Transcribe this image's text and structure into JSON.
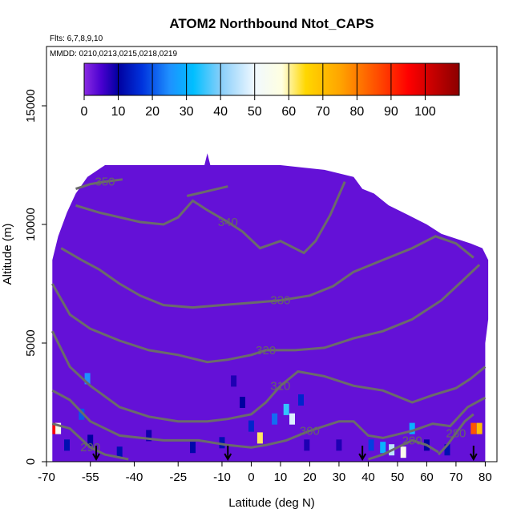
{
  "chart_data": {
    "type": "heatmap",
    "title": "ATOM2 Northbound Ntot_CAPS",
    "subtitle_flights": "Flts: 6,7,8,9,10",
    "subtitle_dates": "MMDD: 0210,0213,0215,0218,0219",
    "xlabel": "Latitude (deg N)",
    "ylabel": "Altitude (m)",
    "xlim": [
      -70,
      84
    ],
    "ylim": [
      0,
      17500
    ],
    "x_ticks": [
      -70,
      -55,
      -40,
      -25,
      -10,
      0,
      10,
      20,
      30,
      40,
      50,
      60,
      70,
      80
    ],
    "y_ticks": [
      0,
      5000,
      10000,
      15000
    ],
    "colorbar": {
      "range": [
        0,
        110
      ],
      "ticks": [
        0,
        10,
        20,
        30,
        40,
        50,
        60,
        70,
        80,
        90,
        100
      ],
      "stops": [
        {
          "v": 0,
          "color": "#8a2be2"
        },
        {
          "v": 5,
          "color": "#4a00d0"
        },
        {
          "v": 10,
          "color": "#0000a0"
        },
        {
          "v": 17,
          "color": "#0033dd"
        },
        {
          "v": 25,
          "color": "#1e90ff"
        },
        {
          "v": 32,
          "color": "#00bfff"
        },
        {
          "v": 40,
          "color": "#87cefa"
        },
        {
          "v": 50,
          "color": "#f0f8ff"
        },
        {
          "v": 58,
          "color": "#ffffe0"
        },
        {
          "v": 65,
          "color": "#ffd700"
        },
        {
          "v": 75,
          "color": "#ffa500"
        },
        {
          "v": 87,
          "color": "#ff4500"
        },
        {
          "v": 95,
          "color": "#ff0000"
        },
        {
          "v": 110,
          "color": "#8b0000"
        }
      ]
    },
    "background_value": 3,
    "domain_outline": [
      [
        -68,
        0
      ],
      [
        -68,
        8500
      ],
      [
        -66,
        9500
      ],
      [
        -63,
        10500
      ],
      [
        -60,
        11300
      ],
      [
        -56,
        12000
      ],
      [
        -50,
        12500
      ],
      [
        -40,
        12500
      ],
      [
        -25,
        12500
      ],
      [
        -16,
        12500
      ],
      [
        -15,
        13000
      ],
      [
        -14,
        12500
      ],
      [
        -5,
        12500
      ],
      [
        10,
        12500
      ],
      [
        25,
        12300
      ],
      [
        35,
        12000
      ],
      [
        38,
        11500
      ],
      [
        42,
        11300
      ],
      [
        47,
        10800
      ],
      [
        52,
        10500
      ],
      [
        60,
        10000
      ],
      [
        65,
        9600
      ],
      [
        70,
        9400
      ],
      [
        75,
        9200
      ],
      [
        79,
        9000
      ],
      [
        81,
        8500
      ],
      [
        81,
        6000
      ],
      [
        80,
        5000
      ],
      [
        80,
        0
      ]
    ],
    "enhanced_cells": [
      {
        "x": -67,
        "y": 1400,
        "v": 95
      },
      {
        "x": -66,
        "y": 1400,
        "v": 55
      },
      {
        "x": -56,
        "y": 3500,
        "v": 25
      },
      {
        "x": -58,
        "y": 2000,
        "v": 20
      },
      {
        "x": -63,
        "y": 700,
        "v": 12
      },
      {
        "x": -55,
        "y": 900,
        "v": 10
      },
      {
        "x": -45,
        "y": 400,
        "v": 12
      },
      {
        "x": -35,
        "y": 1100,
        "v": 9
      },
      {
        "x": -20,
        "y": 600,
        "v": 11
      },
      {
        "x": -10,
        "y": 800,
        "v": 12
      },
      {
        "x": -6,
        "y": 3400,
        "v": 8
      },
      {
        "x": -3,
        "y": 2500,
        "v": 10
      },
      {
        "x": 0,
        "y": 1500,
        "v": 15
      },
      {
        "x": 3,
        "y": 1000,
        "v": 62
      },
      {
        "x": 8,
        "y": 1800,
        "v": 22
      },
      {
        "x": 12,
        "y": 2200,
        "v": 35
      },
      {
        "x": 14,
        "y": 1800,
        "v": 48
      },
      {
        "x": 17,
        "y": 2600,
        "v": 15
      },
      {
        "x": 19,
        "y": 700,
        "v": 8
      },
      {
        "x": 30,
        "y": 700,
        "v": 8
      },
      {
        "x": 41,
        "y": 700,
        "v": 18
      },
      {
        "x": 45,
        "y": 600,
        "v": 30
      },
      {
        "x": 48,
        "y": 500,
        "v": 45
      },
      {
        "x": 52,
        "y": 400,
        "v": 55
      },
      {
        "x": 55,
        "y": 1400,
        "v": 30
      },
      {
        "x": 60,
        "y": 700,
        "v": 10
      },
      {
        "x": 67,
        "y": 500,
        "v": 12
      },
      {
        "x": 76,
        "y": 1400,
        "v": 85
      },
      {
        "x": 78,
        "y": 1400,
        "v": 70
      }
    ],
    "contours": [
      {
        "label": "290",
        "points": [
          [
            -68,
            1600
          ],
          [
            -62,
            1400
          ],
          [
            -55,
            600
          ],
          [
            -50,
            300
          ],
          [
            -42,
            100
          ]
        ]
      },
      {
        "label": "290",
        "points": [
          [
            40,
            100
          ],
          [
            45,
            300
          ],
          [
            50,
            600
          ],
          [
            55,
            900
          ],
          [
            60,
            700
          ],
          [
            64,
            400
          ]
        ]
      },
      {
        "label": "300",
        "points": [
          [
            -68,
            3000
          ],
          [
            -62,
            2600
          ],
          [
            -55,
            1700
          ],
          [
            -45,
            1100
          ],
          [
            -30,
            900
          ],
          [
            -18,
            900
          ],
          [
            -8,
            700
          ],
          [
            0,
            600
          ],
          [
            5,
            700
          ],
          [
            12,
            900
          ],
          [
            20,
            1300
          ],
          [
            30,
            1700
          ],
          [
            35,
            1700
          ],
          [
            40,
            1100
          ],
          [
            45,
            1000
          ],
          [
            55,
            1300
          ],
          [
            62,
            1600
          ],
          [
            68,
            1500
          ],
          [
            74,
            2300
          ],
          [
            80,
            2700
          ]
        ]
      },
      {
        "label": "280",
        "points": [
          [
            64,
            300
          ],
          [
            67,
            700
          ],
          [
            70,
            1200
          ],
          [
            73,
            1700
          ],
          [
            76,
            2000
          ]
        ]
      },
      {
        "label": "310",
        "points": [
          [
            -68,
            5500
          ],
          [
            -62,
            4000
          ],
          [
            -55,
            3200
          ],
          [
            -45,
            2300
          ],
          [
            -35,
            1900
          ],
          [
            -25,
            1700
          ],
          [
            -15,
            1700
          ],
          [
            -8,
            1800
          ],
          [
            0,
            2000
          ],
          [
            5,
            2500
          ],
          [
            10,
            3200
          ],
          [
            16,
            3800
          ],
          [
            25,
            3600
          ],
          [
            35,
            3200
          ],
          [
            45,
            3000
          ],
          [
            55,
            2500
          ],
          [
            62,
            2800
          ],
          [
            70,
            3100
          ],
          [
            75,
            3500
          ],
          [
            80,
            4000
          ]
        ]
      },
      {
        "label": "320",
        "points": [
          [
            -68,
            7500
          ],
          [
            -62,
            6200
          ],
          [
            -55,
            5600
          ],
          [
            -45,
            5100
          ],
          [
            -35,
            4700
          ],
          [
            -25,
            4500
          ],
          [
            -15,
            4200
          ],
          [
            -8,
            4300
          ],
          [
            0,
            4500
          ],
          [
            5,
            4700
          ],
          [
            15,
            4700
          ],
          [
            25,
            4800
          ],
          [
            35,
            5200
          ],
          [
            45,
            5500
          ],
          [
            55,
            6000
          ],
          [
            65,
            6800
          ],
          [
            72,
            7600
          ],
          [
            78,
            8300
          ]
        ]
      },
      {
        "label": "330",
        "points": [
          [
            -65,
            9000
          ],
          [
            -58,
            8500
          ],
          [
            -52,
            8100
          ],
          [
            -45,
            7500
          ],
          [
            -38,
            7000
          ],
          [
            -30,
            6600
          ],
          [
            -20,
            6500
          ],
          [
            -10,
            6600
          ],
          [
            0,
            6700
          ],
          [
            10,
            6800
          ],
          [
            20,
            7000
          ],
          [
            28,
            7400
          ],
          [
            35,
            8000
          ],
          [
            45,
            8500
          ],
          [
            55,
            9000
          ],
          [
            63,
            9500
          ],
          [
            70,
            9200
          ],
          [
            76,
            8600
          ]
        ]
      },
      {
        "label": "340",
        "points": [
          [
            -60,
            10800
          ],
          [
            -52,
            10500
          ],
          [
            -45,
            10300
          ],
          [
            -38,
            10100
          ],
          [
            -30,
            10000
          ],
          [
            -25,
            10300
          ],
          [
            -20,
            11000
          ],
          [
            -15,
            10600
          ],
          [
            -8,
            10100
          ],
          [
            -3,
            9700
          ],
          [
            3,
            9000
          ],
          [
            10,
            9300
          ],
          [
            18,
            8800
          ],
          [
            22,
            9300
          ],
          [
            27,
            10400
          ],
          [
            32,
            11800
          ]
        ]
      },
      {
        "label": "350",
        "points": [
          [
            -60,
            11500
          ],
          [
            -55,
            11700
          ],
          [
            -50,
            11800
          ],
          [
            -44,
            11900
          ]
        ]
      },
      {
        "label": "",
        "points": [
          [
            -22,
            11200
          ],
          [
            -15,
            11400
          ],
          [
            -8,
            11600
          ]
        ]
      }
    ],
    "arrows_x": [
      -53,
      -8,
      38,
      76
    ]
  }
}
